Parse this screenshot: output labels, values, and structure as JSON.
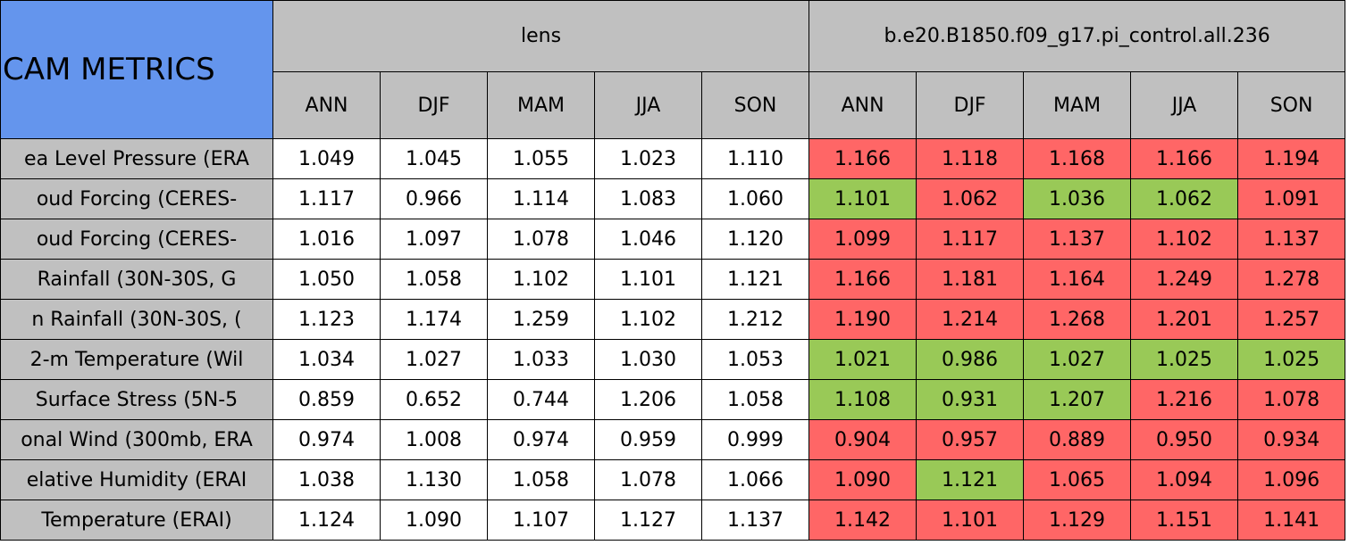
{
  "header": {
    "title": "CAM METRICS",
    "groups": [
      "lens",
      "b.e20.B1850.f09_g17.pi_control.all.236"
    ],
    "seasons": [
      [
        "ANN",
        "DJF",
        "MAM",
        "JJA",
        "SON"
      ],
      [
        "ANN",
        "DJF",
        "MAM",
        "JJA",
        "SON"
      ]
    ]
  },
  "table": {
    "rows": [
      {
        "label": "ea Level Pressure (ERA",
        "values": [
          "1.049",
          "1.045",
          "1.055",
          "1.023",
          "1.110",
          "1.166",
          "1.118",
          "1.168",
          "1.166",
          "1.194"
        ],
        "colors": [
          "#fff",
          "#fff",
          "#fff",
          "#fff",
          "#fff",
          "#ff6666",
          "#ff6666",
          "#ff6666",
          "#ff6666",
          "#ff6666"
        ]
      },
      {
        "label": "oud Forcing (CERES-",
        "values": [
          "1.117",
          "0.966",
          "1.114",
          "1.083",
          "1.060",
          "1.101",
          "1.062",
          "1.036",
          "1.062",
          "1.091"
        ],
        "colors": [
          "#fff",
          "#fff",
          "#fff",
          "#fff",
          "#fff",
          "#99c957",
          "#ff6666",
          "#99c957",
          "#99c957",
          "#ff6666"
        ]
      },
      {
        "label": "oud Forcing (CERES-",
        "values": [
          "1.016",
          "1.097",
          "1.078",
          "1.046",
          "1.120",
          "1.099",
          "1.117",
          "1.137",
          "1.102",
          "1.137"
        ],
        "colors": [
          "#fff",
          "#fff",
          "#fff",
          "#fff",
          "#fff",
          "#ff6666",
          "#ff6666",
          "#ff6666",
          "#ff6666",
          "#ff6666"
        ]
      },
      {
        "label": "Rainfall (30N-30S, G",
        "values": [
          "1.050",
          "1.058",
          "1.102",
          "1.101",
          "1.121",
          "1.166",
          "1.181",
          "1.164",
          "1.249",
          "1.278"
        ],
        "colors": [
          "#fff",
          "#fff",
          "#fff",
          "#fff",
          "#fff",
          "#ff6666",
          "#ff6666",
          "#ff6666",
          "#ff6666",
          "#ff6666"
        ]
      },
      {
        "label": "n Rainfall (30N-30S, (",
        "values": [
          "1.123",
          "1.174",
          "1.259",
          "1.102",
          "1.212",
          "1.190",
          "1.214",
          "1.268",
          "1.201",
          "1.257"
        ],
        "colors": [
          "#fff",
          "#fff",
          "#fff",
          "#fff",
          "#fff",
          "#ff6666",
          "#ff6666",
          "#ff6666",
          "#ff6666",
          "#ff6666"
        ]
      },
      {
        "label": "2-m Temperature (Wil",
        "values": [
          "1.034",
          "1.027",
          "1.033",
          "1.030",
          "1.053",
          "1.021",
          "0.986",
          "1.027",
          "1.025",
          "1.025"
        ],
        "colors": [
          "#fff",
          "#fff",
          "#fff",
          "#fff",
          "#fff",
          "#99c957",
          "#99c957",
          "#99c957",
          "#99c957",
          "#99c957"
        ]
      },
      {
        "label": "Surface Stress (5N-5",
        "values": [
          "0.859",
          "0.652",
          "0.744",
          "1.206",
          "1.058",
          "1.108",
          "0.931",
          "1.207",
          "1.216",
          "1.078"
        ],
        "colors": [
          "#fff",
          "#fff",
          "#fff",
          "#fff",
          "#fff",
          "#99c957",
          "#99c957",
          "#99c957",
          "#ff6666",
          "#ff6666"
        ]
      },
      {
        "label": "onal Wind (300mb, ERA",
        "values": [
          "0.974",
          "1.008",
          "0.974",
          "0.959",
          "0.999",
          "0.904",
          "0.957",
          "0.889",
          "0.950",
          "0.934"
        ],
        "colors": [
          "#fff",
          "#fff",
          "#fff",
          "#fff",
          "#fff",
          "#ff6666",
          "#ff6666",
          "#ff6666",
          "#ff6666",
          "#ff6666"
        ]
      },
      {
        "label": "elative Humidity (ERAI",
        "values": [
          "1.038",
          "1.130",
          "1.058",
          "1.078",
          "1.066",
          "1.090",
          "1.121",
          "1.065",
          "1.094",
          "1.096"
        ],
        "colors": [
          "#fff",
          "#fff",
          "#fff",
          "#fff",
          "#fff",
          "#ff6666",
          "#99c957",
          "#ff6666",
          "#ff6666",
          "#ff6666"
        ]
      },
      {
        "label": "Temperature (ERAI)",
        "values": [
          "1.124",
          "1.090",
          "1.107",
          "1.127",
          "1.137",
          "1.142",
          "1.101",
          "1.129",
          "1.151",
          "1.141"
        ],
        "colors": [
          "#fff",
          "#fff",
          "#fff",
          "#fff",
          "#fff",
          "#ff6666",
          "#ff6666",
          "#ff6666",
          "#ff6666",
          "#ff6666"
        ]
      }
    ]
  }
}
